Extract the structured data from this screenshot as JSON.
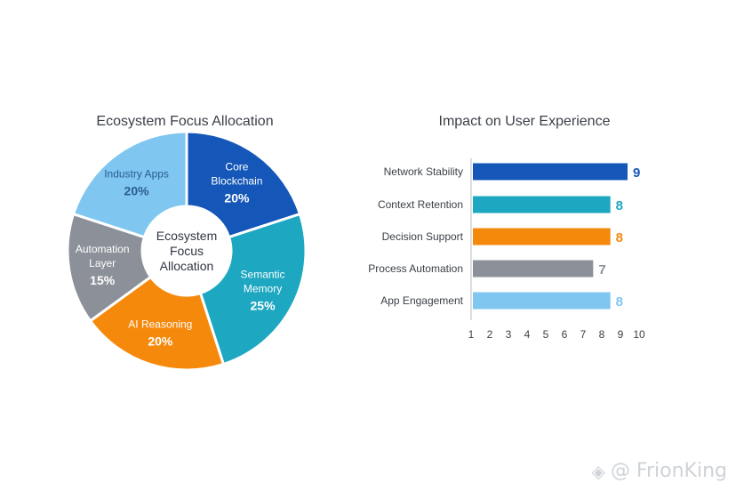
{
  "chart_data": [
    {
      "type": "pie",
      "title": "Ecosystem Focus Allocation",
      "center_label": [
        "Ecosystem",
        "Focus",
        "Allocation"
      ],
      "slices": [
        {
          "label": [
            "Core",
            "Blockchain"
          ],
          "value": 20,
          "value_label": "20%",
          "color": "#1457b8"
        },
        {
          "label": [
            "Semantic",
            "Memory"
          ],
          "value": 25,
          "value_label": "25%",
          "color": "#1ea7c1"
        },
        {
          "label": [
            "AI Reasoning"
          ],
          "value": 20,
          "value_label": "20%",
          "color": "#f5890c"
        },
        {
          "label": [
            "Automation",
            "Layer"
          ],
          "value": 15,
          "value_label": "15%",
          "color": "#8c9199"
        },
        {
          "label": [
            "Industry Apps"
          ],
          "value": 20,
          "value_label": "20%",
          "color": "#7fc6f0"
        }
      ]
    },
    {
      "type": "bar",
      "orientation": "horizontal",
      "title": "Impact on User Experience",
      "categories": [
        "Network Stability",
        "Context Retention",
        "Decision Support",
        "Process Automation",
        "App Engagement"
      ],
      "values": [
        9,
        8,
        8,
        7,
        8
      ],
      "colors": [
        "#1457b8",
        "#1ea7c1",
        "#f5890c",
        "#8c9199",
        "#7fc6f0"
      ],
      "xticks": [
        1,
        2,
        3,
        4,
        5,
        6,
        7,
        8,
        9,
        10
      ],
      "xlim": [
        1,
        10
      ]
    }
  ],
  "watermark": {
    "icon": "◈",
    "text": "@ FrionKing"
  }
}
